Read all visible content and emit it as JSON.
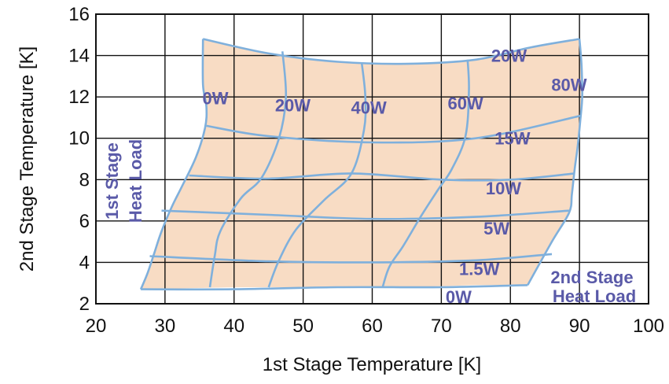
{
  "chart_data": {
    "type": "line",
    "xlabel": "1st Stage Temperature [K]",
    "ylabel": "2nd Stage Temperature [K]",
    "xlim": [
      20,
      100
    ],
    "ylim": [
      2,
      16
    ],
    "xticks": [
      20,
      30,
      40,
      50,
      60,
      70,
      80,
      90,
      100
    ],
    "yticks": [
      2,
      4,
      6,
      8,
      10,
      12,
      14,
      16
    ],
    "grid": true,
    "region_fill": "#f8dcc4",
    "line_color": "#7fb0dc",
    "boundary": [
      [
        35.5,
        14.8
      ],
      [
        38,
        14.6
      ],
      [
        45,
        14.1
      ],
      [
        55,
        13.7
      ],
      [
        65,
        13.6
      ],
      [
        75,
        13.8
      ],
      [
        83,
        14.4
      ],
      [
        90,
        14.8
      ],
      [
        90.3,
        13.5
      ],
      [
        90.4,
        12
      ],
      [
        90.1,
        10.8
      ],
      [
        89.7,
        9.5
      ],
      [
        89.3,
        8.5
      ],
      [
        88.9,
        7.3
      ],
      [
        88.5,
        6.4
      ],
      [
        86,
        5
      ],
      [
        82.5,
        2.9
      ],
      [
        75,
        2.9
      ],
      [
        65,
        2.8
      ],
      [
        50,
        2.8
      ],
      [
        40,
        2.8
      ],
      [
        26.5,
        2.7
      ],
      [
        27.5,
        3.5
      ],
      [
        28.5,
        4.5
      ],
      [
        29.5,
        5.5
      ],
      [
        31,
        6.7
      ],
      [
        32.5,
        7.7
      ],
      [
        34.5,
        9.1
      ],
      [
        35.8,
        10.5
      ],
      [
        36,
        11.5
      ],
      [
        35.5,
        12.6
      ],
      [
        35.5,
        14.8
      ]
    ],
    "series": [
      {
        "group": "2nd Stage Heat Load",
        "name": "0W",
        "points": [
          [
            26.5,
            2.7
          ],
          [
            40,
            2.7
          ],
          [
            55,
            2.8
          ],
          [
            70,
            2.8
          ],
          [
            82.5,
            2.9
          ]
        ]
      },
      {
        "group": "2nd Stage Heat Load",
        "name": "1.5W",
        "points": [
          [
            27.8,
            4.3
          ],
          [
            45,
            4.05
          ],
          [
            60,
            4.0
          ],
          [
            75,
            4.1
          ],
          [
            86,
            4.4
          ]
        ]
      },
      {
        "group": "2nd Stage Heat Load",
        "name": "5W",
        "points": [
          [
            29.5,
            6.5
          ],
          [
            45,
            6.3
          ],
          [
            60,
            6.1
          ],
          [
            75,
            6.2
          ],
          [
            88.5,
            6.5
          ]
        ]
      },
      {
        "group": "2nd Stage Heat Load",
        "name": "10W",
        "points": [
          [
            33.5,
            8.2
          ],
          [
            45,
            8.05
          ],
          [
            57,
            8.3
          ],
          [
            70,
            8.0
          ],
          [
            80,
            8.0
          ],
          [
            89.3,
            8.3
          ]
        ]
      },
      {
        "group": "2nd Stage Heat Load",
        "name": "15W",
        "points": [
          [
            36,
            10.6
          ],
          [
            45,
            10.1
          ],
          [
            60,
            9.8
          ],
          [
            75,
            10.0
          ],
          [
            90.3,
            11.1
          ]
        ]
      },
      {
        "group": "2nd Stage Heat Load",
        "name": "20W",
        "points": [
          [
            35.5,
            14.8
          ],
          [
            45,
            14.1
          ],
          [
            55,
            13.7
          ],
          [
            65,
            13.6
          ],
          [
            75,
            13.8
          ],
          [
            83,
            14.4
          ],
          [
            90,
            14.8
          ]
        ]
      },
      {
        "group": "1st Stage Heat Load",
        "name": "0W",
        "points": [
          [
            35.5,
            14.8
          ],
          [
            35.5,
            12.6
          ],
          [
            36,
            11.5
          ],
          [
            35.8,
            10.5
          ],
          [
            34.5,
            9.1
          ],
          [
            32.5,
            7.7
          ],
          [
            31,
            6.7
          ],
          [
            29.5,
            5.5
          ],
          [
            28.5,
            4.5
          ],
          [
            27.5,
            3.5
          ],
          [
            26.5,
            2.7
          ]
        ]
      },
      {
        "group": "1st Stage Heat Load",
        "name": "20W",
        "points": [
          [
            47,
            14.2
          ],
          [
            47.5,
            12
          ],
          [
            46.5,
            10
          ],
          [
            44,
            8.1
          ],
          [
            41,
            7.1
          ],
          [
            38,
            5.5
          ],
          [
            37.2,
            4.3
          ],
          [
            36.5,
            2.8
          ]
        ]
      },
      {
        "group": "1st Stage Heat Load",
        "name": "40W",
        "points": [
          [
            58.5,
            13.6
          ],
          [
            59,
            12
          ],
          [
            58.8,
            10.4
          ],
          [
            57,
            8.3
          ],
          [
            53,
            7
          ],
          [
            49,
            5.6
          ],
          [
            46.5,
            4.1
          ],
          [
            45,
            2.8
          ]
        ]
      },
      {
        "group": "1st Stage Heat Load",
        "name": "60W",
        "points": [
          [
            73.8,
            13.8
          ],
          [
            74,
            12.3
          ],
          [
            73.5,
            10.1
          ],
          [
            71.5,
            8.5
          ],
          [
            69.5,
            7.5
          ],
          [
            67,
            6.2
          ],
          [
            64.5,
            4.8
          ],
          [
            62.5,
            3.8
          ],
          [
            61.5,
            2.8
          ]
        ]
      },
      {
        "group": "1st Stage Heat Load",
        "name": "80W",
        "points": [
          [
            90,
            14.8
          ],
          [
            90.3,
            13.5
          ],
          [
            90.4,
            12
          ],
          [
            90.1,
            10.8
          ],
          [
            89.7,
            9.5
          ],
          [
            89.3,
            8.5
          ],
          [
            88.9,
            7.3
          ],
          [
            88.5,
            6.4
          ],
          [
            86,
            5
          ],
          [
            82.5,
            2.9
          ]
        ]
      }
    ],
    "annotations": [
      {
        "text": "0W",
        "x": 37.3,
        "y": 11.95,
        "anchor": "middle"
      },
      {
        "text": "20W",
        "x": 48.5,
        "y": 11.6,
        "anchor": "middle"
      },
      {
        "text": "40W",
        "x": 59.5,
        "y": 11.5,
        "anchor": "middle"
      },
      {
        "text": "60W",
        "x": 73.5,
        "y": 11.7,
        "anchor": "middle"
      },
      {
        "text": "80W",
        "x": 88.5,
        "y": 12.6,
        "anchor": "middle"
      },
      {
        "text": "20W",
        "x": 79.8,
        "y": 14.0,
        "anchor": "middle"
      },
      {
        "text": "15W",
        "x": 80.3,
        "y": 10.0,
        "anchor": "middle"
      },
      {
        "text": "10W",
        "x": 79.0,
        "y": 7.6,
        "anchor": "middle"
      },
      {
        "text": "5W",
        "x": 78.0,
        "y": 5.65,
        "anchor": "middle"
      },
      {
        "text": "1.5W",
        "x": 75.5,
        "y": 3.7,
        "anchor": "middle"
      },
      {
        "text": "0W",
        "x": 72.5,
        "y": 2.35,
        "anchor": "middle"
      }
    ],
    "group_labels": {
      "first_stage": [
        "1st Stage",
        "Heat Load"
      ],
      "second_stage": [
        "2nd Stage",
        "Heat Load"
      ]
    }
  }
}
